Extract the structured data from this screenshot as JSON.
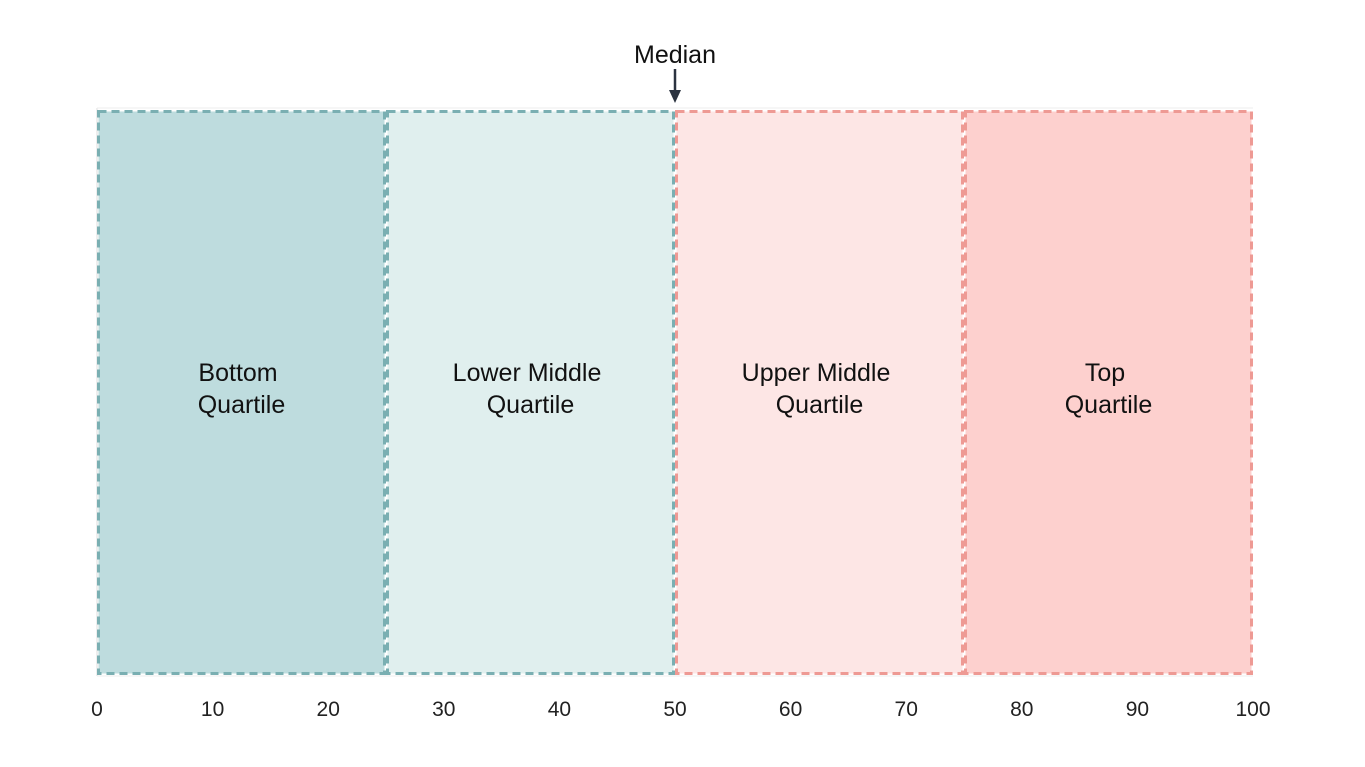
{
  "diagram": {
    "axis": {
      "min": 0,
      "max": 100,
      "ticks": [
        "0",
        "10",
        "20",
        "30",
        "40",
        "50",
        "60",
        "70",
        "80",
        "90",
        "100"
      ]
    },
    "median": {
      "label": "Median",
      "value": 50
    },
    "quartiles": [
      {
        "line1": "Bottom",
        "line2": "Quartile",
        "start": 0,
        "end": 25,
        "fill": "#bedcde",
        "stroke": "#7aafb2"
      },
      {
        "line1": "Lower Middle",
        "line2": "Quartile",
        "start": 25,
        "end": 50,
        "fill": "#e0efee",
        "stroke": "#7aafb2"
      },
      {
        "line1": "Upper Middle",
        "line2": "Quartile",
        "start": 50,
        "end": 75,
        "fill": "#fde6e5",
        "stroke": "#ee9a94"
      },
      {
        "line1": "Top",
        "line2": "Quartile",
        "start": 75,
        "end": 100,
        "fill": "#fdd0ce",
        "stroke": "#ee9a94"
      }
    ],
    "colors": {
      "arrow": "#2b3340",
      "axis_edge": "#dddddd"
    }
  }
}
